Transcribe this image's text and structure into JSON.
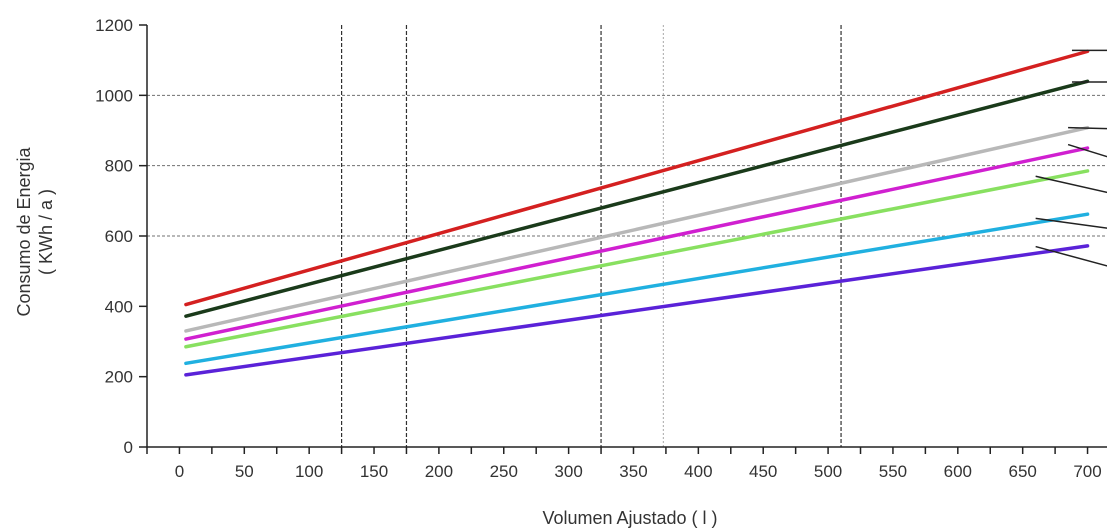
{
  "chart_data": {
    "type": "line",
    "title": "",
    "xlabel": "Volumen Ajustado ( l )",
    "ylabel_line1": "Consumo de Energia",
    "ylabel_line2": "( KWh / a )",
    "xlim": [
      -25,
      715
    ],
    "ylim": [
      0,
      1200
    ],
    "x_ticks": [
      0,
      50,
      100,
      150,
      200,
      250,
      300,
      350,
      400,
      450,
      500,
      550,
      600,
      650,
      700
    ],
    "x_tick_labels": [
      "0",
      "50",
      "100",
      "150",
      "200",
      "250",
      "300",
      "350",
      "400",
      "450",
      "500",
      "550",
      "600",
      "650",
      "700"
    ],
    "y_ticks": [
      0,
      200,
      400,
      600,
      800,
      1000,
      1200
    ],
    "y_tick_labels": [
      "0",
      "200",
      "400",
      "600",
      "800",
      "1000",
      "1200"
    ],
    "horizontal_grid": [
      600,
      800,
      1000
    ],
    "vertical_grid": [
      {
        "x": 125,
        "style": "dark"
      },
      {
        "x": 175,
        "style": "dark"
      },
      {
        "x": 325,
        "style": "dark"
      },
      {
        "x": 373,
        "style": "light"
      },
      {
        "x": 510,
        "style": "dark"
      }
    ],
    "legend": "none",
    "series": [
      {
        "color": "#d42020",
        "x": [
          5,
          700
        ],
        "y": [
          405,
          1125
        ]
      },
      {
        "color": "#1a3a1a",
        "x": [
          5,
          700
        ],
        "y": [
          372,
          1040
        ]
      },
      {
        "color": "#b8b8b8",
        "x": [
          5,
          700
        ],
        "y": [
          330,
          908
        ]
      },
      {
        "color": "#d020d0",
        "x": [
          5,
          700
        ],
        "y": [
          307,
          850
        ]
      },
      {
        "color": "#88e060",
        "x": [
          5,
          700
        ],
        "y": [
          285,
          785
        ]
      },
      {
        "color": "#20b0e0",
        "x": [
          5,
          700
        ],
        "y": [
          238,
          662
        ]
      },
      {
        "color": "#5a22d8",
        "x": [
          5,
          700
        ],
        "y": [
          205,
          572
        ]
      }
    ],
    "leader_lines": [
      {
        "color": "#222222",
        "x": [
          688,
          720
        ],
        "y": [
          1128,
          1128
        ]
      },
      {
        "color": "#222222",
        "x": [
          688,
          720
        ],
        "y": [
          1038,
          1038
        ]
      },
      {
        "color": "#222222",
        "x": [
          685,
          720
        ],
        "y": [
          908,
          905
        ]
      },
      {
        "color": "#222222",
        "x": [
          685,
          720
        ],
        "y": [
          860,
          820
        ]
      },
      {
        "color": "#222222",
        "x": [
          660,
          720
        ],
        "y": [
          770,
          720
        ]
      },
      {
        "color": "#222222",
        "x": [
          660,
          720
        ],
        "y": [
          650,
          620
        ]
      },
      {
        "color": "#222222",
        "x": [
          660,
          720
        ],
        "y": [
          570,
          510
        ]
      }
    ]
  }
}
